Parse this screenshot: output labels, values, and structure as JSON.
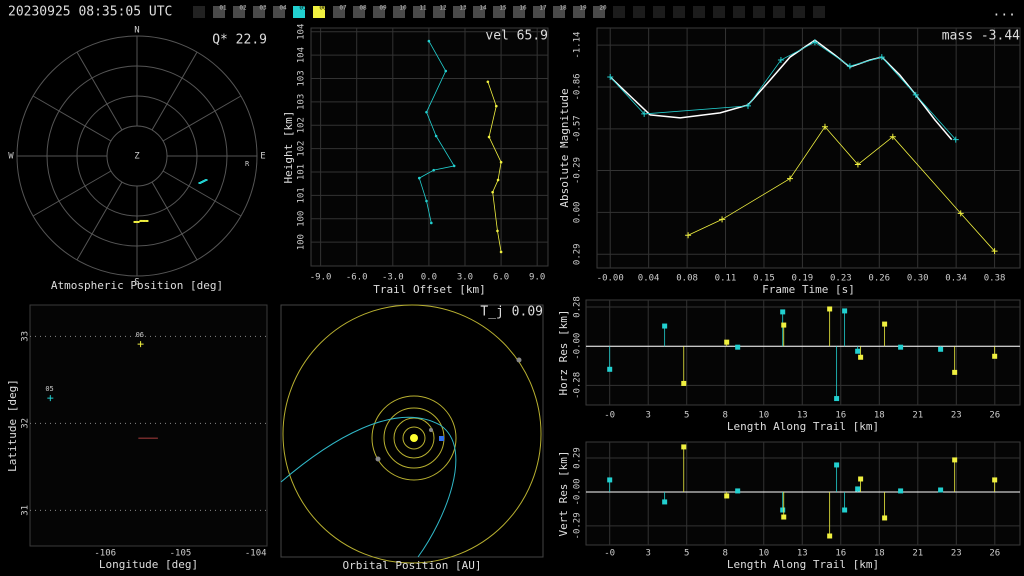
{
  "toolbar": {
    "timestamp": "20230925 08:35:05 UTC",
    "menu": "...",
    "stations": [
      {
        "label": "01",
        "color": "#4a4a4a"
      },
      {
        "label": "02",
        "color": "#4a4a4a"
      },
      {
        "label": "03",
        "color": "#4a4a4a"
      },
      {
        "label": "04",
        "color": "#4a4a4a"
      },
      {
        "label": "05",
        "color": "#22d0d0"
      },
      {
        "label": "06",
        "color": "#f0f040"
      },
      {
        "label": "07",
        "color": "#4a4a4a"
      },
      {
        "label": "08",
        "color": "#4a4a4a"
      },
      {
        "label": "09",
        "color": "#4a4a4a"
      },
      {
        "label": "10",
        "color": "#4a4a4a"
      },
      {
        "label": "11",
        "color": "#4a4a4a"
      },
      {
        "label": "12",
        "color": "#4a4a4a"
      },
      {
        "label": "13",
        "color": "#4a4a4a"
      },
      {
        "label": "14",
        "color": "#4a4a4a"
      },
      {
        "label": "15",
        "color": "#4a4a4a"
      },
      {
        "label": "16",
        "color": "#4a4a4a"
      },
      {
        "label": "17",
        "color": "#4a4a4a"
      },
      {
        "label": "18",
        "color": "#4a4a4a"
      },
      {
        "label": "19",
        "color": "#4a4a4a"
      },
      {
        "label": "20",
        "color": "#4a4a4a"
      }
    ]
  },
  "chart_data": [
    {
      "type": "polar",
      "x_label": "Atmospheric Position [deg]",
      "annotation": "Q* 22.9",
      "directions": [
        "N",
        "E",
        "S",
        "W"
      ],
      "zenith": "Z",
      "range_label": "R",
      "series": [
        {
          "color": "#22d0d0",
          "azimuth": [
            113.2,
            111.8,
            110.5,
            109.2
          ],
          "elevation": [
            38.6,
            37.5,
            36.4,
            35.2
          ]
        },
        {
          "color": "#f0f040",
          "azimuth": [
            181.7,
            179.1,
            176.5,
            173.9,
            171.3
          ],
          "elevation": [
            40.5,
            40.5,
            41.2,
            41.0,
            40.7
          ]
        }
      ]
    },
    {
      "type": "line",
      "x_label": "Trail Offset [km]",
      "y_label": "Height [km]",
      "annotation": "vel 65.9",
      "grid": true,
      "xlim": [
        -9.8,
        9.9
      ],
      "ylim": [
        99.49,
        104.58
      ],
      "xticks": [
        {
          "value": -9,
          "label": "-9.0"
        },
        {
          "value": -6,
          "label": "-6.0"
        },
        {
          "value": -3,
          "label": "-3.0"
        },
        {
          "value": 0,
          "label": "0.0"
        },
        {
          "value": 3,
          "label": "3.0"
        },
        {
          "value": 6,
          "label": "6.0"
        },
        {
          "value": 9,
          "label": "9.0"
        }
      ],
      "yticks": [
        100,
        {
          "value": 100.5,
          "label": "100"
        },
        101,
        {
          "value": 101.5,
          "label": "101"
        },
        102,
        {
          "value": 102.5,
          "label": "102"
        },
        103,
        {
          "value": 103.5,
          "label": "103"
        },
        104,
        {
          "value": 104.5,
          "label": "104"
        }
      ],
      "series": [
        {
          "color": "#22d0d0",
          "line": true,
          "marker": "dot",
          "x": [
            0.0,
            1.4,
            -0.2,
            0.6,
            2.1,
            0.4,
            -0.8,
            -0.2,
            0.2
          ],
          "values": [
            104.3,
            103.66,
            102.78,
            102.27,
            101.63,
            101.54,
            101.37,
            100.88,
            100.41
          ]
        },
        {
          "color": "#f0f040",
          "line": true,
          "marker": "dot",
          "x": [
            4.9,
            5.6,
            5.0,
            6.0,
            5.75,
            5.3,
            5.7,
            6.0
          ],
          "values": [
            103.43,
            102.91,
            102.25,
            101.71,
            101.33,
            101.07,
            100.24,
            99.79
          ]
        }
      ]
    },
    {
      "type": "line",
      "x_label": "Frame Time [s]",
      "y_label": "Absolute Magnitude",
      "annotation": "mass -3.44",
      "grid": true,
      "xlim": [
        -0.013,
        0.403
      ],
      "ylim": [
        0.38,
        -1.26
      ],
      "xticks": [
        {
          "value": 0,
          "label": "-0.00"
        },
        {
          "value": 0.0378,
          "label": "0.04"
        },
        {
          "value": 0.0756,
          "label": "0.08"
        },
        {
          "value": 0.1134,
          "label": "0.11"
        },
        {
          "value": 0.1512,
          "label": "0.15"
        },
        {
          "value": 0.189,
          "label": "0.19"
        },
        {
          "value": 0.2268,
          "label": "0.23"
        },
        {
          "value": 0.2646,
          "label": "0.26"
        },
        {
          "value": 0.3024,
          "label": "0.30"
        },
        {
          "value": 0.3402,
          "label": "0.34"
        },
        {
          "value": 0.378,
          "label": "0.38"
        }
      ],
      "yticks": [
        {
          "value": -1.143,
          "label": "-1.14"
        },
        {
          "value": -0.857,
          "label": "-0.86"
        },
        {
          "value": -0.571,
          "label": "-0.57"
        },
        {
          "value": -0.286,
          "label": "-0.29"
        },
        {
          "value": 0,
          "label": "0.00"
        },
        {
          "value": 0.286,
          "label": "0.29"
        }
      ],
      "series": [
        {
          "color": "#ffffff",
          "line": true,
          "marker": "none",
          "x": [
            0,
            0.0393,
            0.0688,
            0.1081,
            0.1355,
            0.1572,
            0.1768,
            0.2013,
            0.221,
            0.2357,
            0.2553,
            0.2671,
            0.2848,
            0.3005,
            0.3192,
            0.3358
          ],
          "values": [
            -0.925,
            -0.666,
            -0.646,
            -0.68,
            -0.734,
            -0.904,
            -1.061,
            -1.177,
            -1.075,
            -0.993,
            -1.041,
            -1.061,
            -0.939,
            -0.803,
            -0.633,
            -0.497
          ]
        },
        {
          "color": "#22d0d0",
          "line": true,
          "marker": "plus",
          "x": [
            0,
            0.0334,
            0.1355,
            0.1679,
            0.2013,
            0.2357,
            0.2671,
            0.3005,
            0.3398
          ],
          "values": [
            -0.925,
            -0.673,
            -0.728,
            -1.041,
            -1.163,
            -0.999,
            -1.061,
            -0.803,
            -0.497
          ]
        },
        {
          "color": "#f0f040",
          "line": true,
          "marker": "plus",
          "x": [
            0.0766,
            0.11,
            0.1768,
            0.2112,
            0.2436,
            0.2779,
            0.3447,
            0.378
          ],
          "values": [
            0.156,
            0.048,
            -0.231,
            -0.585,
            -0.327,
            -0.517,
            0.007,
            0.265
          ]
        }
      ]
    },
    {
      "type": "map",
      "x_label": "Longitude [deg]",
      "y_label": "Latitude [deg]",
      "grid": true,
      "xlim": [
        -107.0,
        -103.85
      ],
      "ylim": [
        30.59,
        33.36
      ],
      "xticks": [
        -106,
        -105,
        -104
      ],
      "yticks": [
        31,
        32,
        33
      ],
      "series": [
        {
          "color": "#22d0d0",
          "marker": "plus",
          "x": [
            -106.73
          ],
          "values": [
            32.29
          ],
          "labels": [
            "05"
          ]
        },
        {
          "color": "#f0f040",
          "marker": "plus",
          "x": [
            -105.53
          ],
          "values": [
            32.91
          ],
          "labels": [
            "06"
          ]
        },
        {
          "color": "#e05050",
          "line": true,
          "marker": "none",
          "x": [
            -105.56,
            -105.3
          ],
          "values": [
            31.83,
            31.83
          ]
        }
      ]
    },
    {
      "type": "orbit",
      "x_label": "Orbital Position [AU]",
      "annotation": "T_j 0.09"
    },
    {
      "type": "stem",
      "x_label": "Length Along Trail [km]",
      "y_label": "Horz Res [km]",
      "grid": true,
      "xlim": [
        -1.6,
        27.7
      ],
      "ylim": [
        -0.42,
        0.33
      ],
      "xticks": [
        {
          "value": 0,
          "label": "-0"
        },
        {
          "value": 2.6,
          "label": "3"
        },
        {
          "value": 5.2,
          "label": "5"
        },
        {
          "value": 7.8,
          "label": "8"
        },
        {
          "value": 10.4,
          "label": "10"
        },
        13,
        {
          "value": 15.6,
          "label": "16"
        },
        {
          "value": 18.2,
          "label": "18"
        },
        {
          "value": 20.8,
          "label": "21"
        },
        {
          "value": 23.4,
          "label": "23"
        },
        26
      ],
      "yticks": [
        0.28,
        {
          "value": 0,
          "label": "-0.00"
        },
        -0.28
      ],
      "series": [
        {
          "color": "#22d0d0",
          "x": [
            0,
            3.71,
            8.64,
            11.68,
            15.32,
            15.86,
            16.74,
            19.64,
            22.34
          ],
          "values": [
            -0.165,
            0.144,
            -0.007,
            0.245,
            -0.374,
            0.252,
            -0.036,
            -0.007,
            -0.022
          ]
        },
        {
          "color": "#f0f040",
          "x": [
            5.0,
            7.9,
            11.75,
            14.85,
            16.94,
            18.56,
            23.29,
            25.99
          ],
          "values": [
            -0.266,
            0.029,
            0.151,
            0.266,
            -0.079,
            0.158,
            -0.187,
            -0.072
          ]
        }
      ]
    },
    {
      "type": "stem",
      "x_label": "Length Along Trail [km]",
      "y_label": "Vert Res [km]",
      "grid": true,
      "xlim": [
        -1.6,
        27.7
      ],
      "ylim": [
        -0.453,
        0.427
      ],
      "xticks": [
        {
          "value": 0,
          "label": "-0"
        },
        {
          "value": 2.6,
          "label": "3"
        },
        {
          "value": 5.2,
          "label": "5"
        },
        {
          "value": 7.8,
          "label": "8"
        },
        {
          "value": 10.4,
          "label": "10"
        },
        13,
        {
          "value": 15.6,
          "label": "16"
        },
        {
          "value": 18.2,
          "label": "18"
        },
        {
          "value": 20.8,
          "label": "21"
        },
        {
          "value": 23.4,
          "label": "23"
        },
        26
      ],
      "yticks": [
        0.29,
        {
          "value": 0,
          "label": "-0.00"
        },
        -0.29
      ],
      "series": [
        {
          "color": "#22d0d0",
          "x": [
            0,
            3.71,
            8.64,
            11.68,
            15.32,
            15.86,
            16.74,
            19.64,
            22.34
          ],
          "values": [
            0.103,
            -0.085,
            0.009,
            -0.154,
            0.231,
            -0.154,
            0.026,
            0.009,
            0.017
          ]
        },
        {
          "color": "#f0f040",
          "x": [
            5.0,
            7.9,
            11.75,
            14.85,
            16.94,
            18.56,
            23.29,
            25.99
          ],
          "values": [
            0.385,
            -0.034,
            -0.214,
            -0.376,
            0.111,
            -0.222,
            0.274,
            0.103
          ]
        }
      ]
    }
  ]
}
